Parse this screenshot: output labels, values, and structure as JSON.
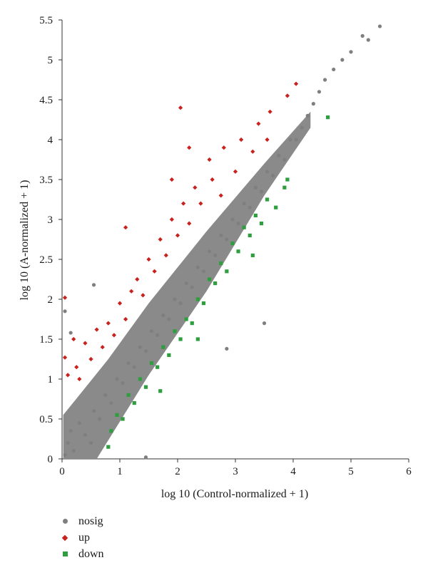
{
  "chart_data": {
    "type": "scatter",
    "title": "",
    "xlabel": "log 10 (Control-normalized + 1)",
    "ylabel": "log 10 (A-normalized + 1)",
    "xlim": [
      0,
      6
    ],
    "ylim": [
      0,
      5.5
    ],
    "x_ticks": [
      "0",
      "1",
      "2",
      "3",
      "4",
      "5",
      "6"
    ],
    "y_ticks": [
      "0",
      "0.5",
      "1",
      "1.5",
      "2",
      "2.5",
      "3",
      "3.5",
      "4",
      "4.5",
      "5",
      "5.5"
    ],
    "grid": false,
    "legend_position": "bottom-left",
    "series": [
      {
        "name": "nosig",
        "color": "#7f7f7f",
        "marker": "circle",
        "points": [
          [
            0.05,
            0.05
          ],
          [
            0.1,
            0.2
          ],
          [
            0.15,
            0.35
          ],
          [
            0.2,
            0.1
          ],
          [
            0.3,
            0.45
          ],
          [
            0.4,
            0.3
          ],
          [
            0.5,
            0.2
          ],
          [
            0.55,
            0.6
          ],
          [
            0.65,
            0.5
          ],
          [
            0.75,
            0.8
          ],
          [
            0.85,
            0.7
          ],
          [
            0.95,
            1.0
          ],
          [
            1.05,
            0.95
          ],
          [
            1.15,
            1.2
          ],
          [
            1.25,
            1.15
          ],
          [
            1.35,
            1.4
          ],
          [
            1.45,
            1.35
          ],
          [
            1.55,
            1.6
          ],
          [
            1.65,
            1.55
          ],
          [
            1.75,
            1.8
          ],
          [
            1.85,
            1.75
          ],
          [
            1.95,
            2.0
          ],
          [
            2.05,
            1.95
          ],
          [
            2.15,
            2.2
          ],
          [
            2.25,
            2.15
          ],
          [
            2.35,
            2.4
          ],
          [
            2.45,
            2.35
          ],
          [
            2.55,
            2.6
          ],
          [
            2.65,
            2.55
          ],
          [
            2.75,
            2.8
          ],
          [
            2.85,
            2.75
          ],
          [
            2.95,
            3.0
          ],
          [
            3.05,
            2.95
          ],
          [
            3.15,
            3.2
          ],
          [
            3.25,
            3.15
          ],
          [
            3.35,
            3.4
          ],
          [
            3.45,
            3.35
          ],
          [
            3.55,
            3.6
          ],
          [
            3.65,
            3.55
          ],
          [
            3.75,
            3.8
          ],
          [
            3.85,
            3.75
          ],
          [
            3.95,
            4.0
          ],
          [
            4.05,
            4.0
          ],
          [
            4.15,
            4.15
          ],
          [
            4.25,
            4.3
          ],
          [
            4.35,
            4.45
          ],
          [
            4.45,
            4.6
          ],
          [
            4.55,
            4.75
          ],
          [
            4.7,
            4.88
          ],
          [
            4.85,
            5.0
          ],
          [
            5.0,
            5.1
          ],
          [
            5.2,
            5.3
          ],
          [
            5.3,
            5.25
          ],
          [
            5.5,
            5.42
          ],
          [
            0.05,
            1.85
          ],
          [
            0.55,
            2.18
          ],
          [
            1.45,
            0.02
          ],
          [
            3.5,
            1.7
          ],
          [
            2.85,
            1.38
          ],
          [
            0.15,
            1.58
          ]
        ]
      },
      {
        "name": "up",
        "color": "#c8221e",
        "marker": "diamond",
        "points": [
          [
            0.05,
            2.02
          ],
          [
            0.05,
            1.27
          ],
          [
            0.1,
            1.05
          ],
          [
            0.2,
            1.5
          ],
          [
            0.25,
            1.15
          ],
          [
            0.3,
            1.0
          ],
          [
            0.4,
            1.45
          ],
          [
            0.5,
            1.25
          ],
          [
            0.6,
            1.62
          ],
          [
            0.7,
            1.4
          ],
          [
            0.8,
            1.7
          ],
          [
            0.9,
            1.55
          ],
          [
            1.0,
            1.95
          ],
          [
            1.1,
            1.75
          ],
          [
            1.1,
            2.9
          ],
          [
            1.2,
            2.1
          ],
          [
            1.3,
            2.25
          ],
          [
            1.4,
            2.05
          ],
          [
            1.5,
            2.5
          ],
          [
            1.6,
            2.35
          ],
          [
            1.7,
            2.75
          ],
          [
            1.8,
            2.55
          ],
          [
            1.9,
            3.0
          ],
          [
            1.9,
            3.5
          ],
          [
            2.0,
            2.8
          ],
          [
            2.1,
            3.2
          ],
          [
            2.2,
            2.95
          ],
          [
            2.2,
            3.9
          ],
          [
            2.3,
            3.4
          ],
          [
            2.4,
            3.2
          ],
          [
            2.55,
            3.75
          ],
          [
            2.6,
            3.5
          ],
          [
            2.75,
            3.3
          ],
          [
            2.8,
            3.9
          ],
          [
            3.0,
            3.6
          ],
          [
            3.1,
            4.0
          ],
          [
            3.3,
            3.85
          ],
          [
            3.4,
            4.2
          ],
          [
            3.55,
            4.0
          ],
          [
            3.6,
            4.35
          ],
          [
            3.9,
            4.55
          ],
          [
            4.05,
            4.7
          ],
          [
            2.05,
            4.4
          ]
        ]
      },
      {
        "name": "down",
        "color": "#2e9e3e",
        "marker": "square",
        "points": [
          [
            0.8,
            0.15
          ],
          [
            0.85,
            0.35
          ],
          [
            0.95,
            0.55
          ],
          [
            1.05,
            0.5
          ],
          [
            1.15,
            0.8
          ],
          [
            1.25,
            0.7
          ],
          [
            1.35,
            1.0
          ],
          [
            1.45,
            0.9
          ],
          [
            1.55,
            1.2
          ],
          [
            1.65,
            1.15
          ],
          [
            1.75,
            1.4
          ],
          [
            1.85,
            1.3
          ],
          [
            1.95,
            1.6
          ],
          [
            2.05,
            1.5
          ],
          [
            2.15,
            1.75
          ],
          [
            2.25,
            1.7
          ],
          [
            2.35,
            2.0
          ],
          [
            2.45,
            1.95
          ],
          [
            2.55,
            2.25
          ],
          [
            2.65,
            2.2
          ],
          [
            2.75,
            2.45
          ],
          [
            2.85,
            2.35
          ],
          [
            2.95,
            2.7
          ],
          [
            3.05,
            2.6
          ],
          [
            3.15,
            2.9
          ],
          [
            3.25,
            2.8
          ],
          [
            3.35,
            3.05
          ],
          [
            3.45,
            2.95
          ],
          [
            3.55,
            3.25
          ],
          [
            3.7,
            3.15
          ],
          [
            3.85,
            3.4
          ],
          [
            3.9,
            3.5
          ],
          [
            4.6,
            4.28
          ],
          [
            2.35,
            1.5
          ],
          [
            3.3,
            2.55
          ],
          [
            1.7,
            0.85
          ]
        ]
      }
    ]
  }
}
